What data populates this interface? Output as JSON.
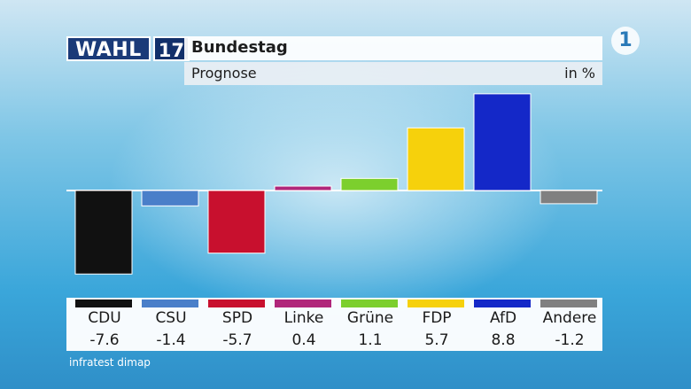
{
  "header": {
    "logo_word": "WAHL",
    "logo_number": "17",
    "title": "Bundestag",
    "subtitle": "Prognose",
    "unit": "in %",
    "broadcaster_icon": "ard-one-icon"
  },
  "source": "infratest dimap",
  "chart_data": {
    "type": "bar",
    "title": "Bundestag",
    "subtitle": "Prognose",
    "ylabel": "in %",
    "categories": [
      "CDU",
      "CSU",
      "SPD",
      "Linke",
      "Grüne",
      "FDP",
      "AfD",
      "Andere"
    ],
    "values": [
      -7.6,
      -1.4,
      -5.7,
      0.4,
      1.1,
      5.7,
      8.8,
      -1.2
    ],
    "value_labels": [
      "-7.6",
      "-1.4",
      "-5.7",
      "0.4",
      "1.1",
      "5.7",
      "8.8",
      "-1.2"
    ],
    "colors": [
      "#111111",
      "#4a7fc9",
      "#c8102e",
      "#b0267a",
      "#7ccf2d",
      "#f6d10c",
      "#1428c8",
      "#808080"
    ],
    "ylim": [
      -8,
      9
    ],
    "grid": false,
    "legend": "none"
  }
}
